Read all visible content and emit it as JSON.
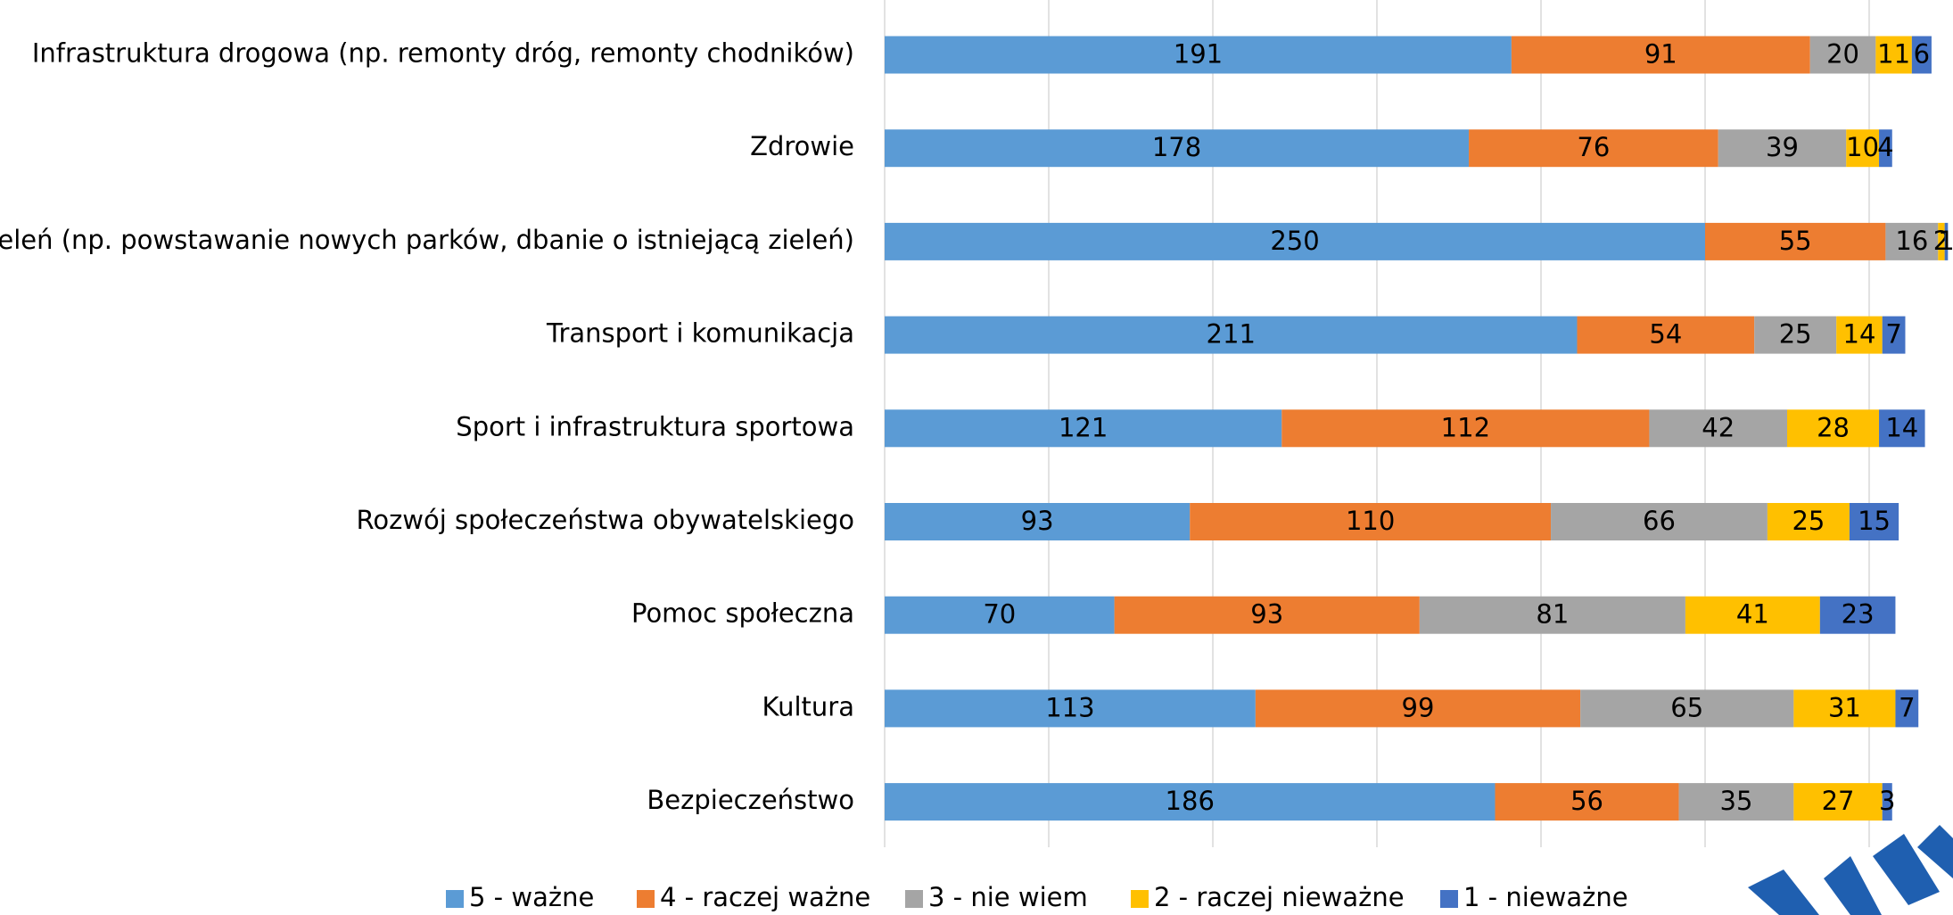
{
  "chart_data": {
    "type": "stacked_barh",
    "categories": [
      "Infrastruktura drogowa (np. remonty dróg, remonty chodników)",
      "Zdrowie",
      "Zieleń (np. powstawanie nowych parków, dbanie o istniejącą zieleń)",
      "Transport i komunikacja",
      "Sport i infrastruktura sportowa",
      "Rozwój społeczeństwa obywatelskiego",
      "Pomoc społeczna",
      "Kultura",
      "Bezpieczeństwo"
    ],
    "series": [
      {
        "name": "5 - ważne",
        "color": "#5b9bd5",
        "values": [
          191,
          178,
          250,
          211,
          121,
          93,
          70,
          113,
          186
        ]
      },
      {
        "name": "4 - raczej ważne",
        "color": "#ed7d31",
        "values": [
          91,
          76,
          55,
          54,
          112,
          110,
          93,
          99,
          56
        ]
      },
      {
        "name": "3 - nie wiem",
        "color": "#a5a5a5",
        "values": [
          20,
          39,
          16,
          25,
          42,
          66,
          81,
          65,
          35
        ]
      },
      {
        "name": "2 - raczej nieważne",
        "color": "#ffc000",
        "values": [
          11,
          10,
          2,
          14,
          28,
          25,
          41,
          31,
          27
        ]
      },
      {
        "name": "1 - nieważne",
        "color": "#4472c4",
        "values": [
          6,
          4,
          1,
          7,
          14,
          15,
          23,
          7,
          3
        ]
      }
    ],
    "xlim": [
      0,
      325
    ],
    "xticks": [
      0,
      50,
      100,
      150,
      200,
      250,
      300
    ],
    "grid": true,
    "legend": "bottom"
  }
}
